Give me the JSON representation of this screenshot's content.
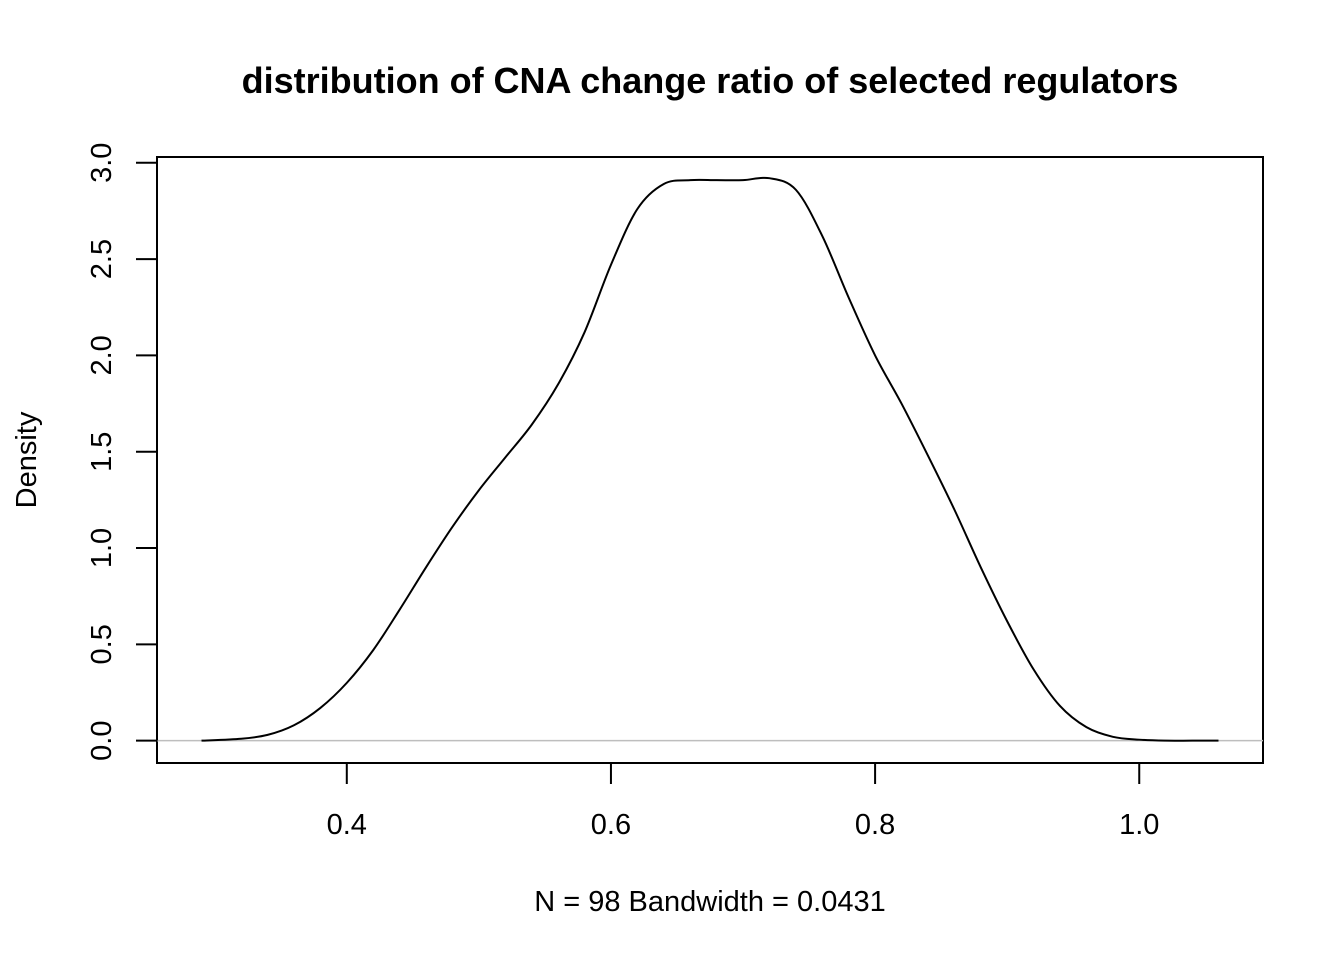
{
  "chart_data": {
    "type": "line",
    "title": "distribution of CNA change ratio of selected regulators",
    "xlabel": "N = 98   Bandwidth = 0.0431",
    "ylabel": "Density",
    "xlim": [
      0.2563,
      1.0937
    ],
    "ylim": [
      -0.116,
      3.03
    ],
    "x_ticks": [
      0.4,
      0.6,
      0.8,
      1.0
    ],
    "x_tick_labels": [
      "0.4",
      "0.6",
      "0.8",
      "1.0"
    ],
    "y_ticks": [
      0.0,
      0.5,
      1.0,
      1.5,
      2.0,
      2.5,
      3.0
    ],
    "y_tick_labels": [
      "0.0",
      "0.5",
      "1.0",
      "1.5",
      "2.0",
      "2.5",
      "3.0"
    ],
    "grid": false,
    "zero_line": {
      "y": 0,
      "color": "#bebebe"
    },
    "line_color": "#000000",
    "series": [
      {
        "x": [
          0.29,
          0.32,
          0.34,
          0.36,
          0.38,
          0.4,
          0.42,
          0.44,
          0.46,
          0.48,
          0.5,
          0.52,
          0.54,
          0.56,
          0.58,
          0.6,
          0.62,
          0.64,
          0.66,
          0.68,
          0.7,
          0.72,
          0.74,
          0.76,
          0.78,
          0.8,
          0.82,
          0.84,
          0.86,
          0.88,
          0.9,
          0.92,
          0.94,
          0.96,
          0.98,
          1.0,
          1.02,
          1.04,
          1.06
        ],
        "y": [
          0.0,
          0.01,
          0.03,
          0.08,
          0.17,
          0.3,
          0.47,
          0.68,
          0.9,
          1.11,
          1.3,
          1.47,
          1.64,
          1.85,
          2.12,
          2.47,
          2.76,
          2.89,
          2.91,
          2.91,
          2.91,
          2.92,
          2.86,
          2.62,
          2.3,
          2.0,
          1.75,
          1.48,
          1.2,
          0.9,
          0.62,
          0.37,
          0.18,
          0.07,
          0.02,
          0.005,
          0.0,
          0.0,
          0.0
        ]
      }
    ]
  }
}
